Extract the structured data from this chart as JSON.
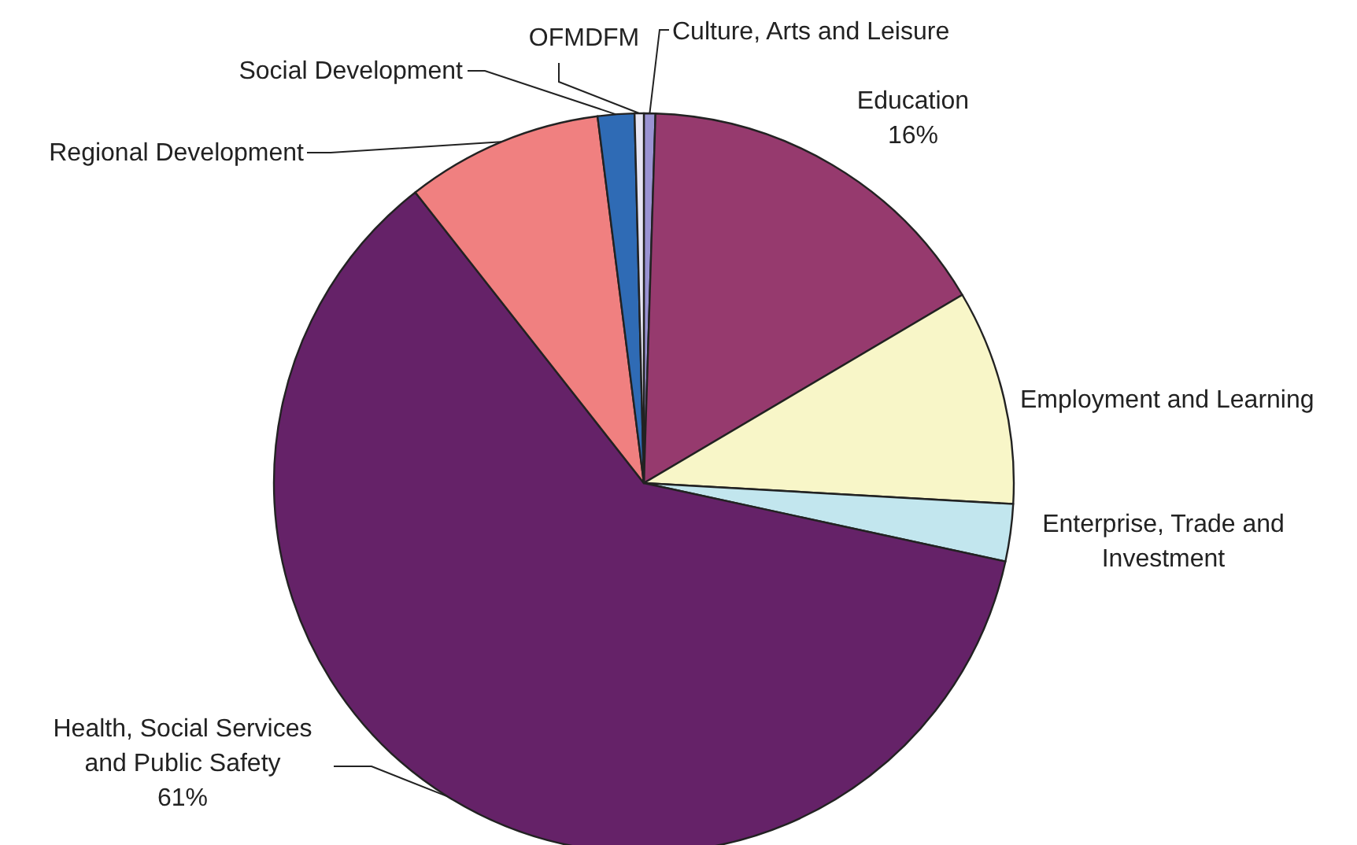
{
  "chart_data": {
    "type": "pie",
    "categories": [
      "Culture, Arts and Leisure",
      "Education",
      "Employment and Learning",
      "Enterprise, Trade and Investment",
      "Health, Social Services and Public Safety",
      "Regional Development",
      "Social Development",
      "OFMDFM"
    ],
    "values": [
      0.5,
      16,
      9.4,
      2.5,
      61,
      8.6,
      1.6,
      0.4
    ],
    "colors": [
      "#9a93d3",
      "#963a6e",
      "#f8f6c8",
      "#c2e6ee",
      "#652268",
      "#f08080",
      "#2f6bb5",
      "#e8e6f4"
    ],
    "value_labels": [
      null,
      "16%",
      null,
      null,
      "61%",
      null,
      null,
      null
    ]
  }
}
